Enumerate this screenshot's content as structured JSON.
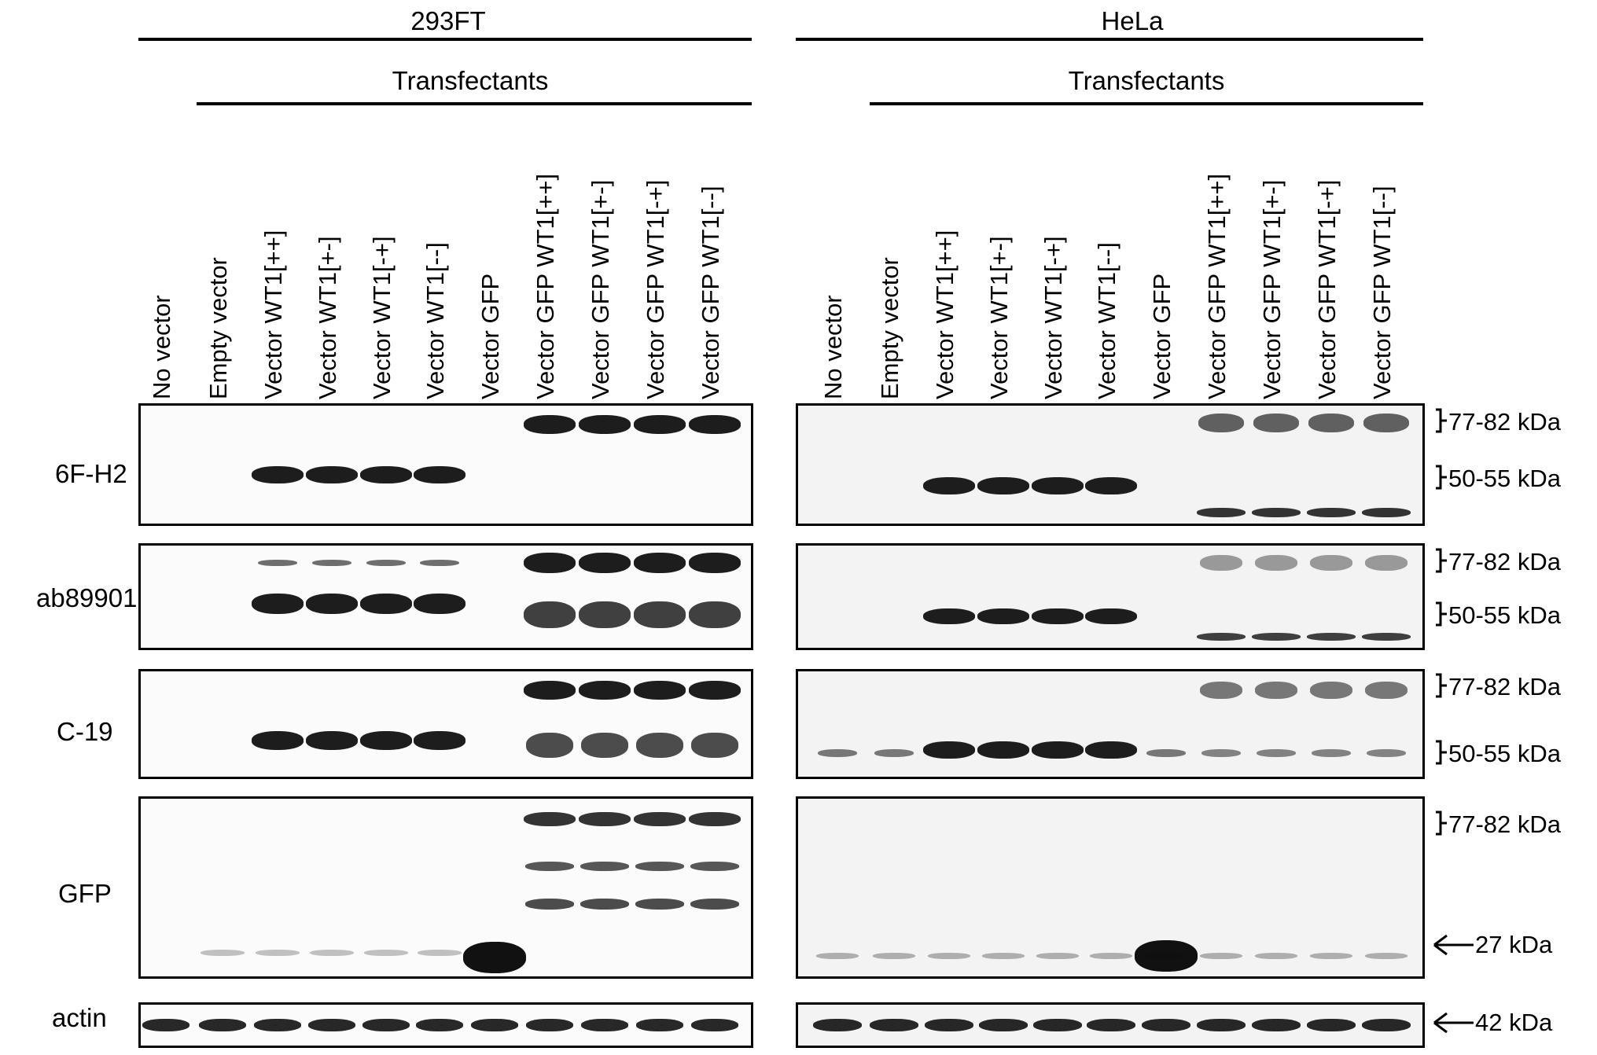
{
  "groups": [
    {
      "cell_line": "293FT",
      "transfectants_label": "Transfectants",
      "lanes": [
        "No vector",
        "Empty vector",
        "Vector WT1[++]",
        "Vector WT1[+-]",
        "Vector WT1[-+]",
        "Vector WT1[--]",
        "Vector GFP",
        "Vector GFP WT1[++]",
        "Vector GFP WT1[+-]",
        "Vector GFP WT1[-+]",
        "Vector GFP WT1[--]"
      ]
    },
    {
      "cell_line": "HeLa",
      "transfectants_label": "Transfectants",
      "lanes": [
        "No vector",
        "Empty vector",
        "Vector WT1[++]",
        "Vector WT1[+-]",
        "Vector WT1[-+]",
        "Vector WT1[--]",
        "Vector GFP",
        "Vector GFP WT1[++]",
        "Vector GFP WT1[+-]",
        "Vector GFP WT1[-+]",
        "Vector GFP WT1[--]"
      ]
    }
  ],
  "antibodies": [
    "6F-H2",
    "ab89901",
    "C-19",
    "GFP",
    "actin"
  ],
  "markers": {
    "kda_77_82": "77-82 kDa",
    "kda_50_55": "50-55 kDa",
    "kda_27": "27 kDa",
    "kda_42": "42 kDa"
  }
}
